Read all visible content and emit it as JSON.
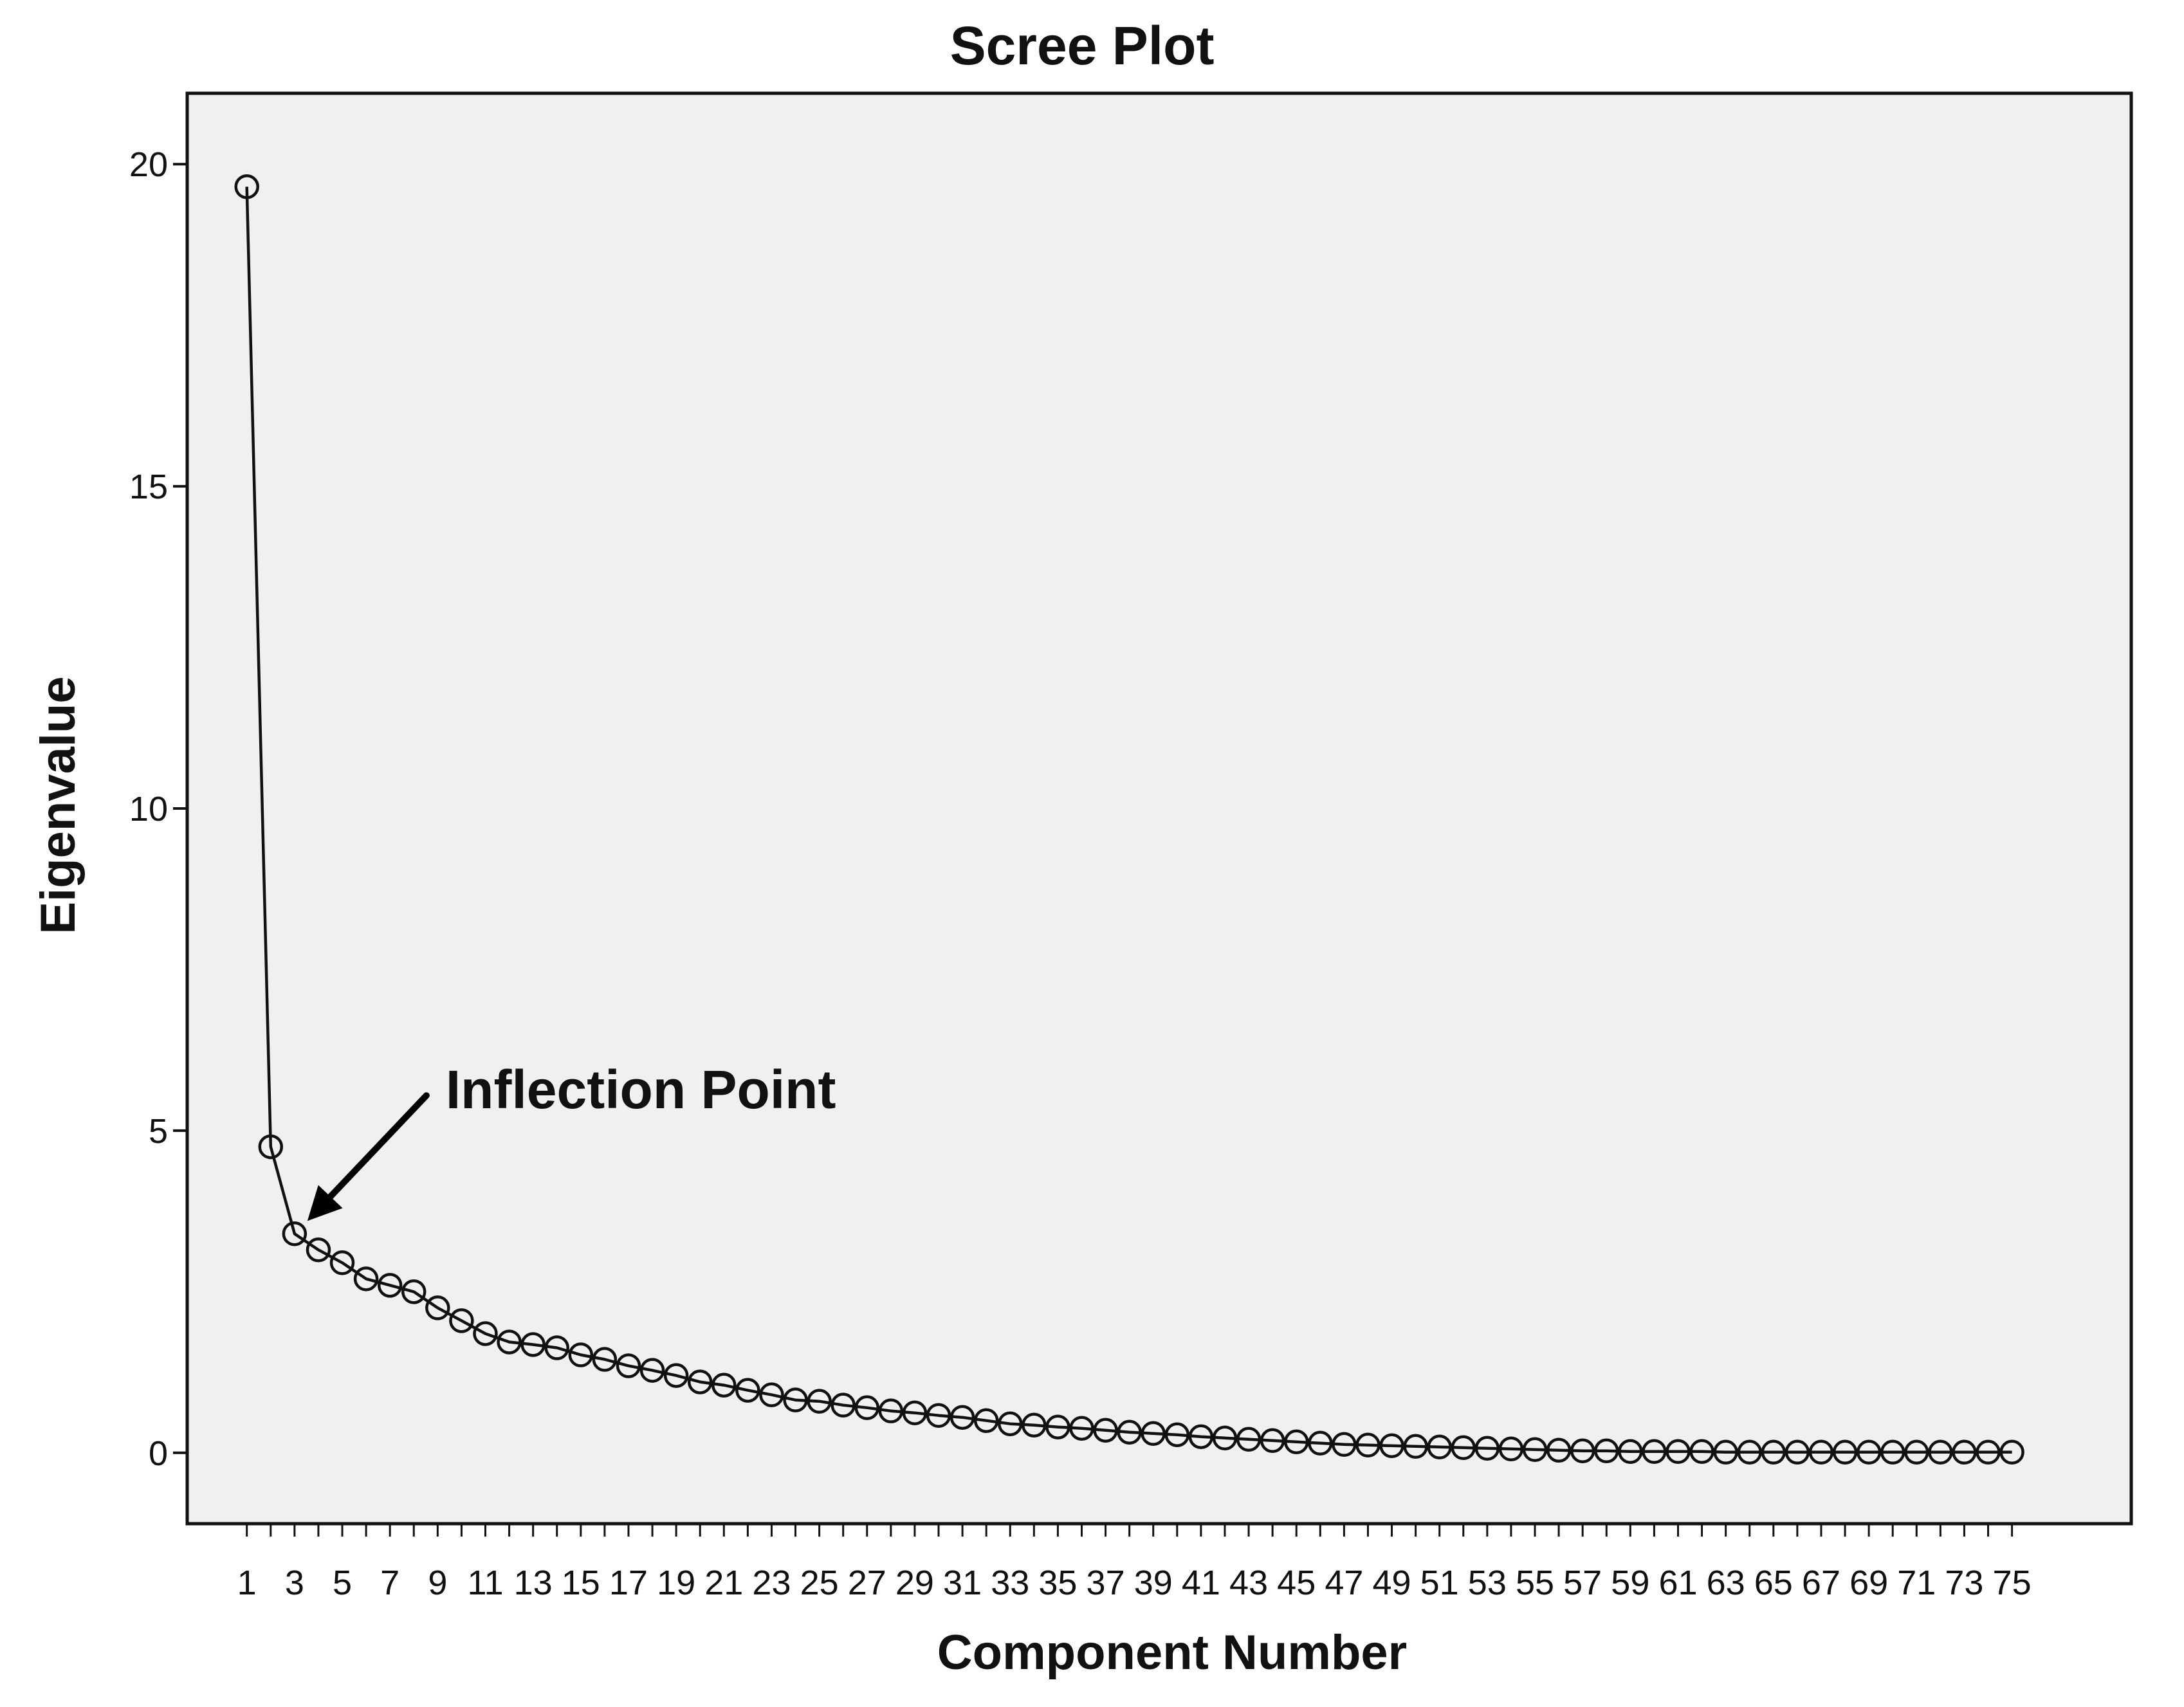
{
  "chart_data": {
    "type": "line",
    "title": "Scree Plot",
    "xlabel": "Component Number",
    "ylabel": "Eigenvalue",
    "xlim": [
      -1.5,
      80
    ],
    "ylim": [
      -1.1,
      21.1
    ],
    "grid": false,
    "legend": "none",
    "marker": "open-circle",
    "colors": {
      "plot_bg": "#f0f0f0",
      "line": "#111111",
      "marker": "#111111"
    },
    "yticks": [
      0,
      5,
      10,
      15,
      20
    ],
    "ytick_labels": [
      "0",
      "5",
      "10",
      "15",
      "20"
    ],
    "xticks": [
      1,
      3,
      5,
      7,
      9,
      11,
      13,
      15,
      17,
      19,
      21,
      23,
      25,
      27,
      29,
      31,
      33,
      35,
      37,
      39,
      41,
      43,
      45,
      47,
      49,
      51,
      53,
      55,
      57,
      59,
      61,
      63,
      65,
      67,
      69,
      71,
      73,
      75
    ],
    "xtick_labels": [
      "1",
      "3",
      "5",
      "7",
      "9",
      "11",
      "13",
      "15",
      "17",
      "19",
      "21",
      "23",
      "25",
      "27",
      "29",
      "31",
      "33",
      "35",
      "37",
      "39",
      "41",
      "43",
      "45",
      "47",
      "49",
      "51",
      "53",
      "55",
      "57",
      "59",
      "61",
      "63",
      "65",
      "67",
      "69",
      "71",
      "73",
      "75"
    ],
    "x": [
      1,
      2,
      3,
      4,
      5,
      6,
      7,
      8,
      9,
      10,
      11,
      12,
      13,
      14,
      15,
      16,
      17,
      18,
      19,
      20,
      21,
      22,
      23,
      24,
      25,
      26,
      27,
      28,
      29,
      30,
      31,
      32,
      33,
      34,
      35,
      36,
      37,
      38,
      39,
      40,
      41,
      42,
      43,
      44,
      45,
      46,
      47,
      48,
      49,
      50,
      51,
      52,
      53,
      54,
      55,
      56,
      57,
      58,
      59,
      60,
      61,
      62,
      63,
      64,
      65,
      66,
      67,
      68,
      69,
      70,
      71,
      72,
      73,
      74,
      75
    ],
    "values": [
      19.65,
      4.75,
      3.4,
      3.15,
      2.95,
      2.7,
      2.6,
      2.5,
      2.25,
      2.05,
      1.85,
      1.72,
      1.68,
      1.63,
      1.52,
      1.45,
      1.35,
      1.28,
      1.2,
      1.1,
      1.05,
      0.97,
      0.9,
      0.82,
      0.8,
      0.74,
      0.7,
      0.65,
      0.62,
      0.58,
      0.55,
      0.5,
      0.45,
      0.43,
      0.4,
      0.38,
      0.35,
      0.32,
      0.3,
      0.28,
      0.25,
      0.23,
      0.21,
      0.19,
      0.17,
      0.15,
      0.13,
      0.12,
      0.11,
      0.1,
      0.09,
      0.08,
      0.07,
      0.06,
      0.05,
      0.04,
      0.03,
      0.03,
      0.02,
      0.02,
      0.02,
      0.02,
      0.01,
      0.01,
      0.01,
      0.01,
      0.01,
      0.01,
      0.01,
      0.01,
      0.01,
      0.01,
      0.01,
      0.01,
      0.01
    ],
    "annotations": [
      {
        "text": "Inflection Point",
        "target_x": 3,
        "target_y": 3.4
      }
    ]
  }
}
